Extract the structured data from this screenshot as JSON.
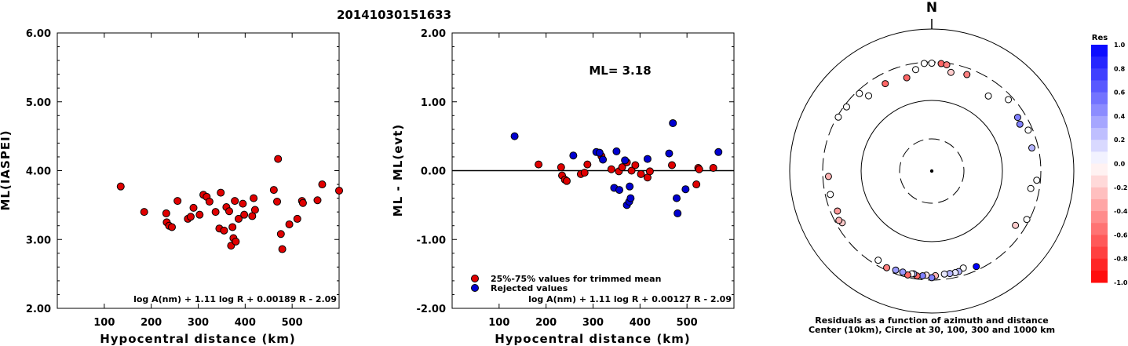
{
  "title": "20141030151633",
  "chart_data": [
    {
      "id": "ml",
      "type": "scatter",
      "xlabel": "Hypocentral distance (km)",
      "ylabel": "ML(IASPEI)",
      "xlim": [
        0,
        600
      ],
      "ylim": [
        2.0,
        6.0
      ],
      "xticks": [
        100,
        200,
        300,
        400,
        500
      ],
      "yticks": [
        "2.00",
        "3.00",
        "4.00",
        "5.00",
        "6.00"
      ],
      "formula": "log A(nm) + 1.11 log R + 0.00189 R - 2.09",
      "series": [
        {
          "color": "#e00000",
          "points": [
            [
              135,
              3.77
            ],
            [
              185,
              3.4
            ],
            [
              232,
              3.38
            ],
            [
              233,
              3.25
            ],
            [
              238,
              3.2
            ],
            [
              244,
              3.18
            ],
            [
              256,
              3.56
            ],
            [
              278,
              3.3
            ],
            [
              284,
              3.33
            ],
            [
              290,
              3.46
            ],
            [
              303,
              3.36
            ],
            [
              311,
              3.65
            ],
            [
              318,
              3.62
            ],
            [
              324,
              3.55
            ],
            [
              337,
              3.4
            ],
            [
              345,
              3.16
            ],
            [
              348,
              3.68
            ],
            [
              355,
              3.13
            ],
            [
              360,
              3.47
            ],
            [
              366,
              3.41
            ],
            [
              370,
              2.91
            ],
            [
              373,
              3.18
            ],
            [
              375,
              3.02
            ],
            [
              378,
              3.56
            ],
            [
              380,
              2.97
            ],
            [
              386,
              3.3
            ],
            [
              395,
              3.52
            ],
            [
              398,
              3.36
            ],
            [
              415,
              3.34
            ],
            [
              418,
              3.6
            ],
            [
              421,
              3.43
            ],
            [
              461,
              3.72
            ],
            [
              468,
              3.55
            ],
            [
              470,
              4.17
            ],
            [
              476,
              3.08
            ],
            [
              479,
              2.86
            ],
            [
              494,
              3.22
            ],
            [
              511,
              3.3
            ],
            [
              521,
              3.56
            ],
            [
              523,
              3.53
            ],
            [
              554,
              3.57
            ],
            [
              564,
              3.8
            ],
            [
              600,
              3.71
            ]
          ]
        }
      ]
    },
    {
      "id": "res",
      "type": "scatter",
      "xlabel": "Hypocentral distance (km)",
      "ylabel": "ML - ML(evt)",
      "xlim": [
        0,
        600
      ],
      "ylim": [
        -2.0,
        2.0
      ],
      "xticks": [
        100,
        200,
        300,
        400,
        500
      ],
      "yticks": [
        "-2.00",
        "-1.00",
        "0.00",
        "1.00",
        "2.00"
      ],
      "annotation": "ML= 3.18",
      "formula": "log A(nm) + 1.11 log R + 0.00127 R - 2.09",
      "legend": [
        {
          "label": "25%-75% values for trimmed mean",
          "color": "#e00000"
        },
        {
          "label": "Rejected values",
          "color": "#0000d0"
        }
      ],
      "series": [
        {
          "name": "25%-75% values for trimmed mean",
          "color": "#e00000",
          "points": [
            [
              184,
              0.09
            ],
            [
              232,
              0.05
            ],
            [
              234,
              -0.07
            ],
            [
              240,
              -0.13
            ],
            [
              244,
              -0.15
            ],
            [
              274,
              -0.05
            ],
            [
              282,
              -0.03
            ],
            [
              288,
              0.09
            ],
            [
              318,
              0.21
            ],
            [
              339,
              0.02
            ],
            [
              355,
              -0.01
            ],
            [
              362,
              0.05
            ],
            [
              372,
              0.12
            ],
            [
              382,
              0.0
            ],
            [
              390,
              0.08
            ],
            [
              402,
              -0.05
            ],
            [
              416,
              -0.1
            ],
            [
              421,
              -0.01
            ],
            [
              468,
              0.08
            ],
            [
              520,
              -0.2
            ],
            [
              524,
              0.04
            ],
            [
              526,
              0.02
            ],
            [
              556,
              0.04
            ]
          ]
        },
        {
          "name": "Rejected values",
          "color": "#0000d0",
          "points": [
            [
              133,
              0.5
            ],
            [
              258,
              0.22
            ],
            [
              307,
              0.27
            ],
            [
              314,
              0.26
            ],
            [
              321,
              0.16
            ],
            [
              345,
              -0.25
            ],
            [
              350,
              0.28
            ],
            [
              356,
              -0.28
            ],
            [
              368,
              0.15
            ],
            [
              372,
              -0.5
            ],
            [
              377,
              -0.45
            ],
            [
              378,
              -0.23
            ],
            [
              380,
              -0.4
            ],
            [
              416,
              0.17
            ],
            [
              462,
              0.25
            ],
            [
              470,
              0.69
            ],
            [
              478,
              -0.4
            ],
            [
              480,
              -0.62
            ],
            [
              497,
              -0.27
            ],
            [
              567,
              0.27
            ]
          ]
        }
      ]
    },
    {
      "id": "azimuth",
      "type": "scatter",
      "north_label": "N",
      "caption_line1": "Residuals as a function of azimuth and distance",
      "caption_line2": "Center (10km), Circle at 30, 100, 300 and 1000 km",
      "colorbar_title": "Res",
      "colorbar_ticks": [
        "1.0",
        "0.8",
        "0.6",
        "0.4",
        "0.2",
        "0.0",
        "-0.2",
        "-0.4",
        "-0.6",
        "-0.8",
        "-1.0"
      ],
      "rings_km": [
        10,
        30,
        100,
        300,
        1000
      ],
      "points_azimuth_dist_res": [
        [
          0,
          290,
          0.0
        ],
        [
          5,
          290,
          -0.6
        ],
        [
          8,
          285,
          -0.5
        ],
        [
          11,
          235,
          -0.2
        ],
        [
          20,
          250,
          -0.5
        ],
        [
          37,
          195,
          0.0
        ],
        [
          47,
          265,
          0.0
        ],
        [
          58,
          240,
          0.5
        ],
        [
          62,
          230,
          0.5
        ],
        [
          67,
          265,
          0.0
        ],
        [
          77,
          250,
          0.3
        ],
        [
          95,
          270,
          0.0
        ],
        [
          100,
          235,
          0.0
        ],
        [
          117,
          280,
          0.0
        ],
        [
          123,
          230,
          -0.2
        ],
        [
          155,
          270,
          1.0
        ],
        [
          162,
          245,
          0.0
        ],
        [
          165,
          260,
          0.3
        ],
        [
          167,
          262,
          0.1
        ],
        [
          170,
          260,
          0.3
        ],
        [
          173,
          258,
          0.1
        ],
        [
          178,
          265,
          -0.3
        ],
        [
          180,
          280,
          0.5
        ],
        [
          183,
          262,
          -0.1
        ],
        [
          185,
          268,
          0.5
        ],
        [
          188,
          274,
          -0.6
        ],
        [
          190,
          262,
          0.3
        ],
        [
          191,
          265,
          0.0
        ],
        [
          193,
          280,
          -0.6
        ],
        [
          196,
          268,
          0.4
        ],
        [
          200,
          270,
          0.4
        ],
        [
          205,
          280,
          -0.5
        ],
        [
          211,
          260,
          0.0
        ],
        [
          240,
          255,
          -0.2
        ],
        [
          242,
          268,
          -0.3
        ],
        [
          247,
          248,
          -0.4
        ],
        [
          257,
          260,
          0.0
        ],
        [
          267,
          255,
          -0.3
        ],
        [
          300,
          290,
          0.0
        ],
        [
          307,
          280,
          0.0
        ],
        [
          317,
          275,
          0.0
        ],
        [
          320,
          220,
          0.0
        ],
        [
          332,
          225,
          -0.6
        ],
        [
          345,
          210,
          -0.6
        ],
        [
          351,
          250,
          0.0
        ],
        [
          356,
          290,
          0.0
        ]
      ]
    }
  ]
}
